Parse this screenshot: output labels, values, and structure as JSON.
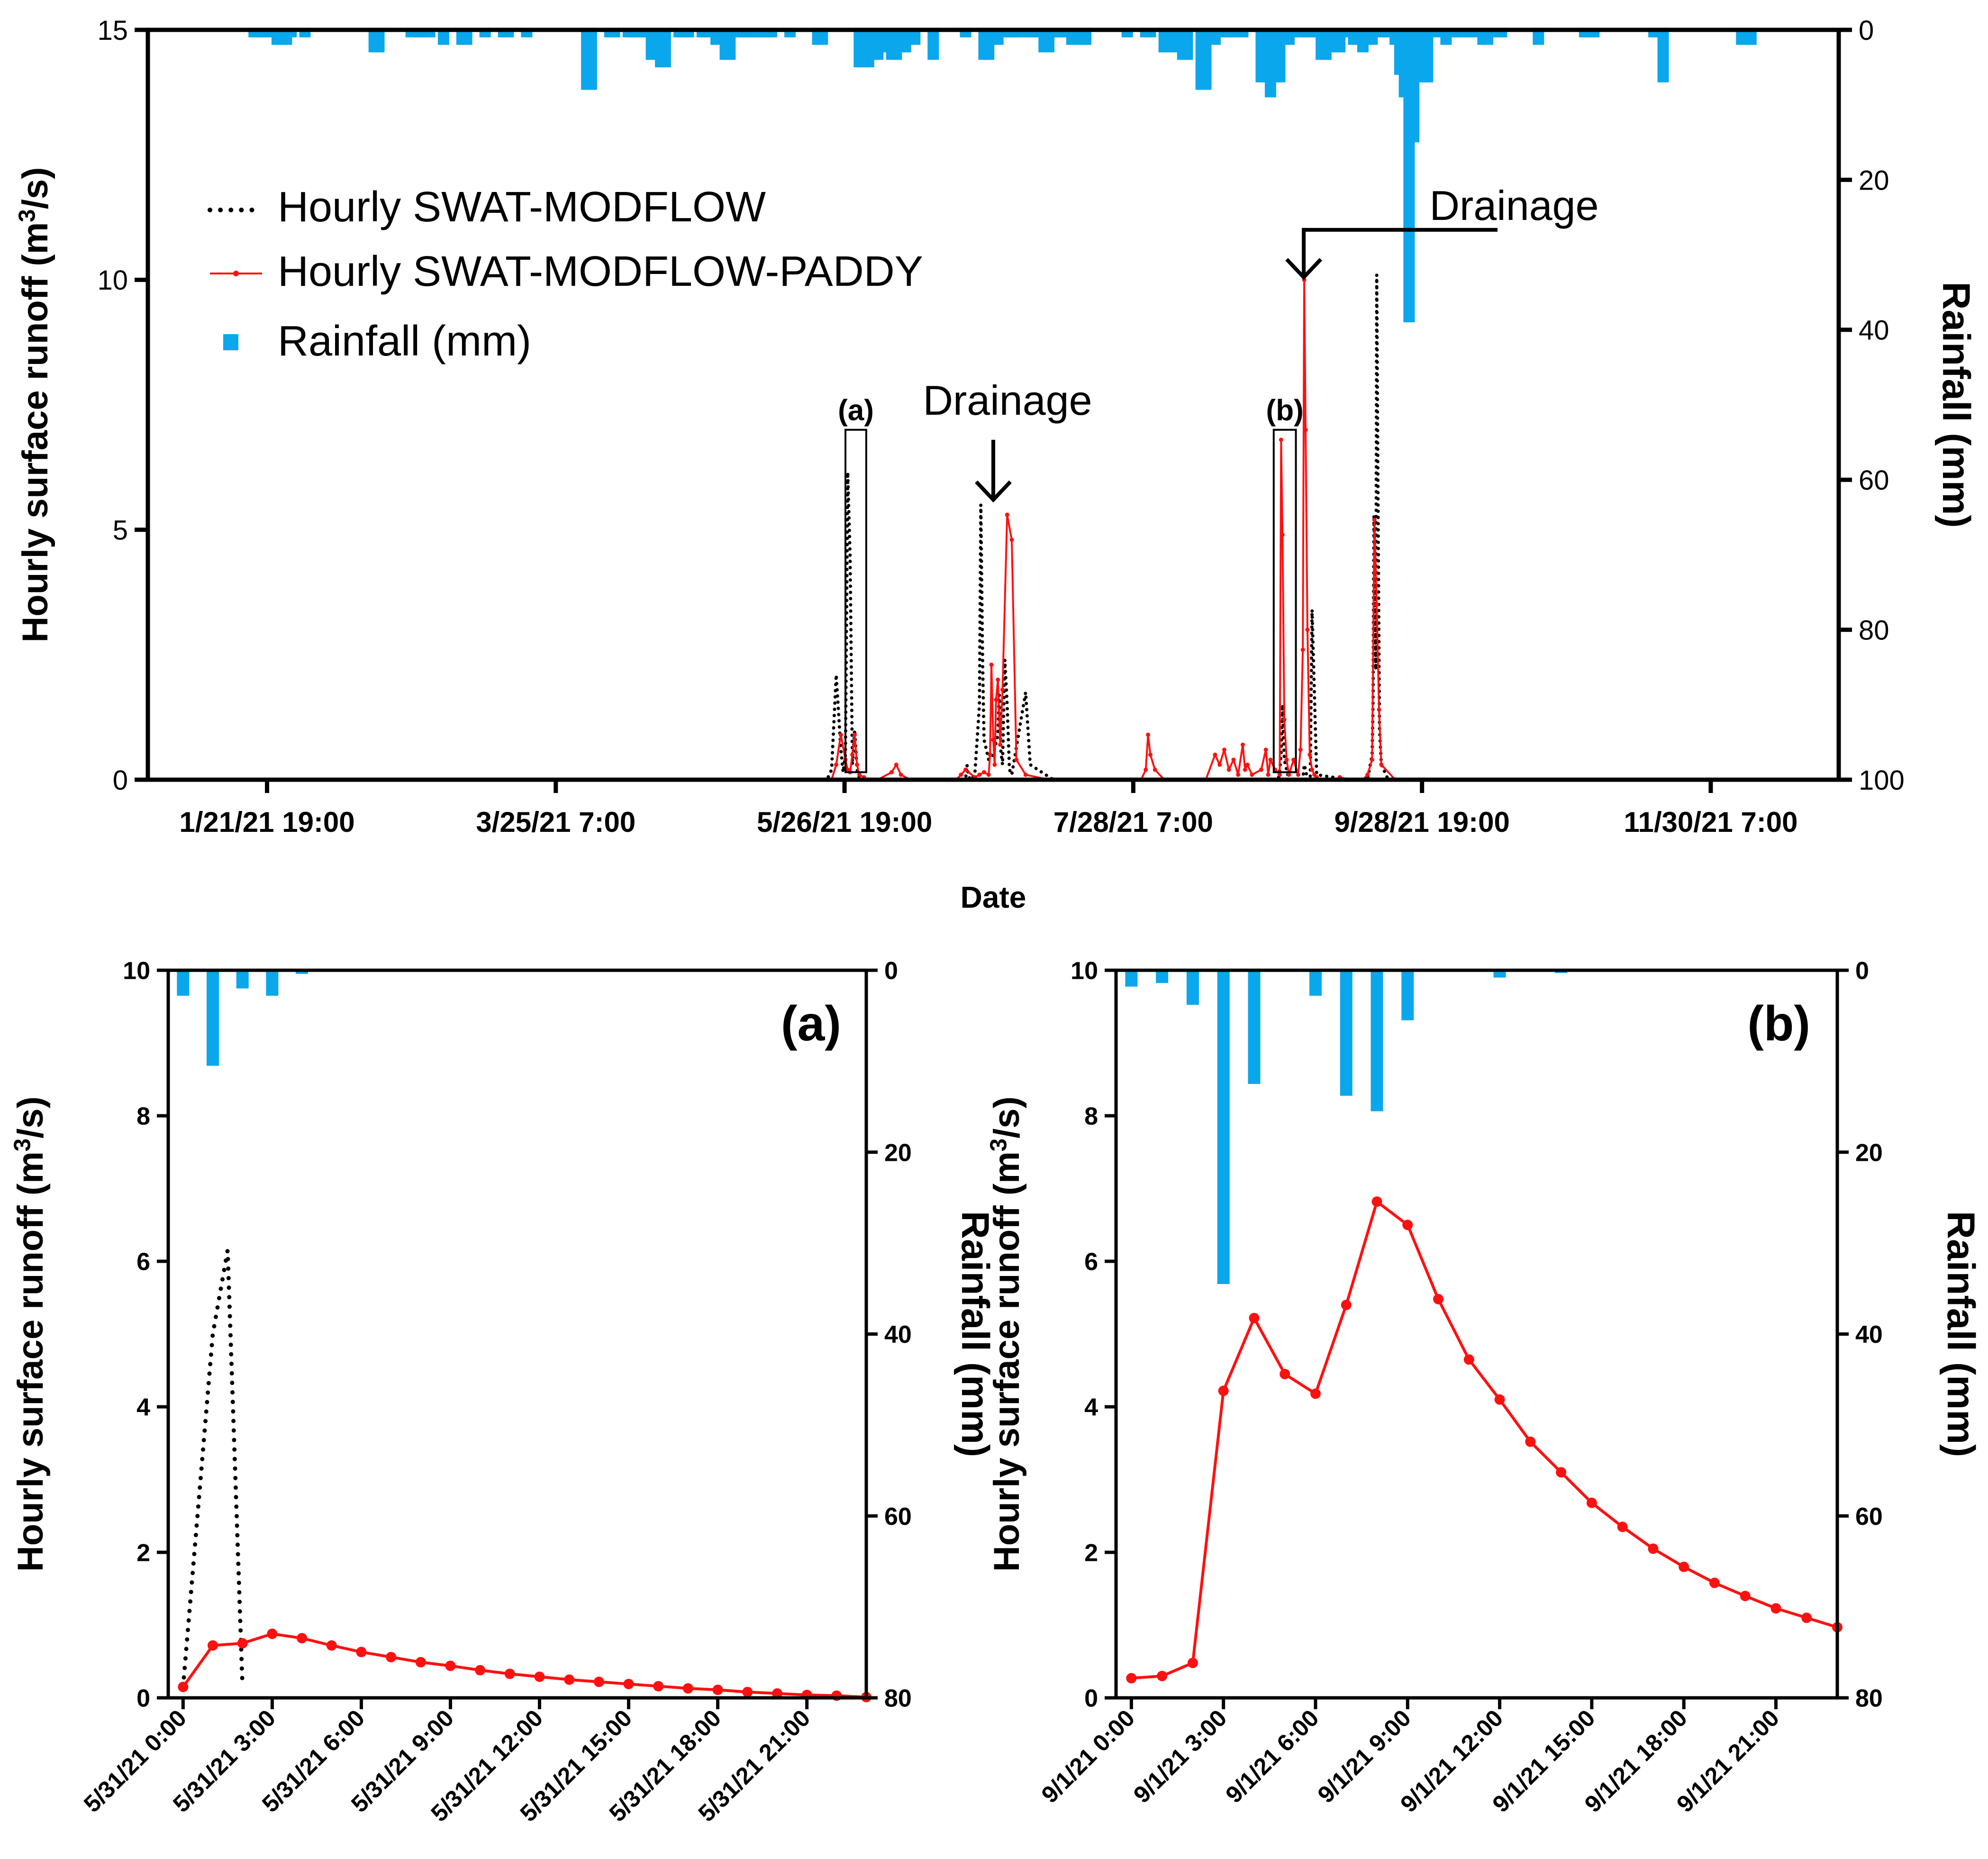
{
  "colors": {
    "rain": "#0aa7ec",
    "paddy": "#ff1010",
    "modflow": "#000000",
    "axis": "#000000"
  },
  "chart_data": [
    {
      "id": "main",
      "type": "line",
      "xlabel": "Date",
      "ylabel_main": "Hourly surface runoff (m",
      "ylabel_sup": "3",
      "ylabel_end": "/s)",
      "y2label": "Rainfall (mm)",
      "ylim": [
        0,
        15
      ],
      "y2lim": [
        0,
        100
      ],
      "y_ticks": [
        "0",
        "5",
        "10",
        "15"
      ],
      "y2_ticks": [
        "0",
        "20",
        "40",
        "60",
        "80",
        "100"
      ],
      "x_unit": "day of year 2021",
      "xlim": [
        -5,
        361
      ],
      "x_ticks": [
        {
          "label": "1/21/21 19:00",
          "x": 20.8
        },
        {
          "label": "3/25/21 7:00",
          "x": 83.3
        },
        {
          "label": "5/26/21 19:00",
          "x": 145.8
        },
        {
          "label": "7/28/21 7:00",
          "x": 208.3
        },
        {
          "label": "9/28/21 19:00",
          "x": 270.8
        },
        {
          "label": "11/30/21 7:00",
          "x": 333.3
        }
      ],
      "legend": {
        "modflow": "Hourly SWAT-MODFLOW",
        "paddy": "Hourly SWAT-MODFLOW-PADDY",
        "rain": "Rainfall (mm)"
      },
      "annotations": {
        "box_a": "(a)",
        "box_b": "(b)",
        "drainage1": "Drainage",
        "drainage2": "Drainage"
      },
      "rainfall": {
        "x": [
          18,
          19,
          20,
          21,
          22,
          23,
          24,
          25,
          26,
          29,
          44,
          45,
          52,
          53,
          54,
          55,
          56,
          59,
          63,
          64,
          68,
          72,
          73,
          77,
          90,
          91,
          95,
          96,
          99,
          100,
          101,
          102,
          103,
          104,
          106,
          107,
          110,
          111,
          112,
          115,
          116,
          118,
          120,
          121,
          123,
          124,
          125,
          126,
          127,
          128,
          129,
          130,
          134,
          140,
          141,
          149,
          150,
          151,
          152,
          153,
          154,
          155,
          156,
          157,
          158,
          159,
          160,
          161,
          165,
          172,
          176,
          177,
          179,
          181,
          182,
          183,
          184,
          186,
          187,
          188,
          189,
          190,
          191,
          192,
          193,
          195,
          197,
          198,
          207,
          211,
          212,
          215,
          216,
          217,
          219,
          220,
          223,
          224,
          226,
          228,
          229,
          230,
          232,
          236,
          237,
          238,
          239,
          240,
          241,
          242,
          244,
          245,
          246,
          247,
          248,
          249,
          250,
          251,
          252,
          253,
          254,
          256,
          257,
          258,
          260,
          262,
          263,
          264,
          265,
          266,
          267,
          268,
          269,
          271,
          272,
          274,
          276,
          278,
          279,
          281,
          282,
          284,
          285,
          287,
          288,
          296,
          306,
          307,
          308,
          321,
          322,
          323,
          340,
          341,
          342
        ],
        "values": [
          1,
          1,
          1,
          1,
          1,
          2,
          2,
          2,
          1,
          1,
          3,
          3,
          1,
          1,
          1,
          1,
          1,
          2,
          2,
          2,
          1,
          1,
          1,
          1,
          8,
          8,
          1,
          1,
          1,
          1,
          1,
          1,
          1,
          4,
          5,
          5,
          1,
          1,
          1,
          1,
          1,
          2,
          4,
          4,
          1,
          1,
          1,
          1,
          1,
          1,
          1,
          1,
          1,
          2,
          2,
          5,
          5,
          5,
          4,
          4,
          3,
          3,
          4,
          4,
          3,
          3,
          2,
          2,
          4,
          1,
          4,
          4,
          2,
          1,
          1,
          1,
          1,
          1,
          1,
          1,
          3,
          3,
          1,
          1,
          1,
          2,
          2,
          2,
          1,
          1,
          1,
          3,
          3,
          3,
          4,
          4,
          8,
          8,
          2,
          1,
          1,
          1,
          1,
          7,
          7,
          9,
          7,
          7,
          2,
          2,
          1,
          1,
          1,
          1,
          1,
          4,
          4,
          1,
          3,
          3,
          1,
          2,
          2,
          3,
          2,
          1,
          1,
          1,
          2,
          6,
          9,
          39,
          15,
          7,
          7,
          1,
          2,
          1,
          1,
          1,
          1,
          2,
          2,
          1,
          1,
          2,
          1,
          1,
          1,
          1,
          1,
          7,
          2,
          2,
          2
        ]
      },
      "modflow_series": {
        "x": [
          140,
          142,
          143,
          144,
          145,
          145.5,
          146,
          146.5,
          147,
          147.5,
          148,
          148.5,
          149,
          149.5,
          150,
          151,
          152,
          172,
          172.3,
          172.6,
          173,
          174,
          175,
          175.3,
          175.7,
          176,
          177,
          178,
          179,
          179.3,
          179.6,
          180,
          180.5,
          181,
          181.5,
          182,
          185,
          186,
          191,
          239.7,
          240,
          240.3,
          240.6,
          241,
          241.5,
          242,
          244,
          245,
          245.3,
          245.6,
          246,
          246.3,
          246.6,
          247,
          248,
          255,
          259,
          260,
          260.2,
          260.4,
          260.6,
          260.8,
          261,
          261.3,
          261.6,
          262,
          263,
          263.5,
          265
        ],
        "values": [
          0,
          0,
          0.2,
          2.1,
          0.6,
          0.15,
          0.5,
          6.15,
          4.5,
          0.3,
          1.0,
          0.2,
          0.05,
          0,
          0,
          0,
          0,
          0,
          0.3,
          0.1,
          0,
          0.1,
          1.5,
          5.5,
          2.3,
          0.8,
          0.4,
          0.5,
          0.9,
          1.7,
          0.6,
          0.3,
          2.4,
          1.5,
          0.2,
          0.1,
          1.75,
          0.3,
          0,
          0,
          0.2,
          0.5,
          1.5,
          0.4,
          0.2,
          0,
          0,
          0,
          0.3,
          0.2,
          0,
          0,
          0,
          3.4,
          0.1,
          0,
          0,
          0.5,
          1.5,
          5.3,
          4.5,
          2.2,
          10.1,
          5.3,
          1.0,
          0.3,
          0.1,
          0,
          0
        ]
      },
      "paddy_series": {
        "x": [
          140,
          143,
          144,
          145,
          146,
          146.5,
          147,
          147.5,
          148,
          148.5,
          149,
          150,
          151,
          153,
          156,
          157,
          158,
          160,
          170,
          171,
          172,
          174,
          175,
          176,
          177,
          177.3,
          177.6,
          178,
          178.3,
          178.6,
          179,
          179.5,
          180,
          181,
          182,
          183,
          185,
          190,
          197,
          210,
          211,
          211.5,
          212,
          213,
          215,
          224,
          226,
          227,
          228,
          229,
          230,
          231,
          232,
          232.5,
          233,
          234,
          236,
          237,
          237.5,
          238,
          239,
          240,
          240.3,
          240.6,
          241,
          241.5,
          242,
          243,
          244,
          244.5,
          245,
          245.3,
          245.6,
          246,
          246.5,
          247,
          247.5,
          248,
          248.5,
          249,
          250,
          252,
          253,
          255,
          258,
          259,
          260,
          260.5,
          261,
          261.5,
          262,
          265
        ],
        "values": [
          0,
          0,
          0.3,
          0.9,
          0.4,
          0.2,
          0.15,
          0.5,
          0.9,
          0.3,
          0.1,
          0.05,
          0,
          0,
          0.15,
          0.3,
          0.1,
          0,
          0,
          0.1,
          0.2,
          0.05,
          0.1,
          0.15,
          0.1,
          0.5,
          2.3,
          0.8,
          0.3,
          1.6,
          2.0,
          0.7,
          1.8,
          5.3,
          4.8,
          0.4,
          0.1,
          0,
          0,
          0,
          0.2,
          0.9,
          0.5,
          0.2,
          0,
          0,
          0.5,
          0.3,
          0.6,
          0.2,
          0.4,
          0.1,
          0.7,
          0.2,
          0.3,
          0.1,
          0.2,
          0.6,
          0.1,
          0.4,
          0.2,
          0.1,
          6.8,
          4.9,
          1.2,
          0.4,
          0.1,
          0.4,
          0.1,
          0.6,
          2.6,
          10.0,
          7.0,
          3.0,
          0.5,
          0.2,
          0.1,
          0.05,
          0,
          0,
          0,
          0,
          0.05,
          0,
          0,
          0.1,
          0.4,
          5.2,
          3.5,
          1.4,
          0.3,
          0
        ]
      }
    },
    {
      "id": "a",
      "type": "line",
      "panel_label": "(a)",
      "ylabel_main": "Hourly surface runoff (m",
      "ylabel_sup": "3",
      "ylabel_end": "/s)",
      "y2label": "Rainfall (mm)",
      "ylim": [
        0,
        10
      ],
      "y2lim": [
        0,
        80
      ],
      "y_ticks": [
        "0",
        "2",
        "4",
        "6",
        "8",
        "10"
      ],
      "y2_ticks": [
        "0",
        "20",
        "40",
        "60",
        "80"
      ],
      "xlim": [
        -0.5,
        23
      ],
      "x_ticks": [
        {
          "label": "5/31/21 0:00",
          "x": 0
        },
        {
          "label": "5/31/21 3:00",
          "x": 3
        },
        {
          "label": "5/31/21 6:00",
          "x": 6
        },
        {
          "label": "5/31/21 9:00",
          "x": 9
        },
        {
          "label": "5/31/21 12:00",
          "x": 12
        },
        {
          "label": "5/31/21 15:00",
          "x": 15
        },
        {
          "label": "5/31/21 18:00",
          "x": 18
        },
        {
          "label": "5/31/21 21:00",
          "x": 21
        }
      ],
      "rainfall": {
        "x": [
          0,
          1,
          2,
          3,
          4
        ],
        "values": [
          2.8,
          10.5,
          2.0,
          2.8,
          0.4
        ]
      },
      "modflow_series": {
        "x": [
          0,
          1,
          1.5,
          2
        ],
        "values": [
          0.15,
          5.0,
          6.15,
          0.15
        ]
      },
      "paddy_series": {
        "x": [
          0,
          1,
          2,
          3,
          4,
          5,
          6,
          7,
          8,
          9,
          10,
          11,
          12,
          13,
          14,
          15,
          16,
          17,
          18,
          19,
          20,
          21,
          22,
          23
        ],
        "values": [
          0.15,
          0.72,
          0.75,
          0.88,
          0.82,
          0.72,
          0.63,
          0.56,
          0.49,
          0.44,
          0.38,
          0.33,
          0.29,
          0.25,
          0.22,
          0.19,
          0.16,
          0.13,
          0.11,
          0.08,
          0.06,
          0.04,
          0.03,
          0.01
        ]
      }
    },
    {
      "id": "b",
      "type": "line",
      "panel_label": "(b)",
      "ylabel_main": "Hourly surface runoff (m",
      "ylabel_sup": "3",
      "ylabel_end": "/s)",
      "y2label": "Rainfall (mm)",
      "ylim": [
        0,
        10
      ],
      "y2lim": [
        0,
        80
      ],
      "y_ticks": [
        "0",
        "2",
        "4",
        "6",
        "8",
        "10"
      ],
      "y2_ticks": [
        "0",
        "20",
        "40",
        "60",
        "80"
      ],
      "xlim": [
        -0.5,
        23
      ],
      "x_ticks": [
        {
          "label": "9/1/21 0:00",
          "x": 0
        },
        {
          "label": "9/1/21 3:00",
          "x": 3
        },
        {
          "label": "9/1/21 6:00",
          "x": 6
        },
        {
          "label": "9/1/21 9:00",
          "x": 9
        },
        {
          "label": "9/1/21 12:00",
          "x": 12
        },
        {
          "label": "9/1/21 15:00",
          "x": 15
        },
        {
          "label": "9/1/21 18:00",
          "x": 18
        },
        {
          "label": "9/1/21 21:00",
          "x": 21
        }
      ],
      "rainfall": {
        "x": [
          0,
          1,
          2,
          3,
          4,
          6,
          7,
          8,
          9,
          12,
          14
        ],
        "values": [
          1.8,
          1.4,
          3.8,
          34.5,
          12.5,
          2.8,
          13.8,
          15.5,
          5.5,
          0.8,
          0.3
        ]
      },
      "modflow_series": {
        "x": [],
        "values": []
      },
      "paddy_series": {
        "x": [
          0,
          1,
          2,
          3,
          4,
          5,
          6,
          7,
          8,
          9,
          10,
          11,
          12,
          13,
          14,
          15,
          16,
          17,
          18,
          19,
          20,
          21,
          22,
          23
        ],
        "values": [
          0.27,
          0.3,
          0.48,
          4.22,
          5.22,
          4.45,
          4.18,
          5.4,
          6.82,
          6.5,
          5.48,
          4.65,
          4.1,
          3.52,
          3.1,
          2.68,
          2.35,
          2.05,
          1.8,
          1.58,
          1.4,
          1.23,
          1.1,
          0.97
        ]
      }
    }
  ]
}
